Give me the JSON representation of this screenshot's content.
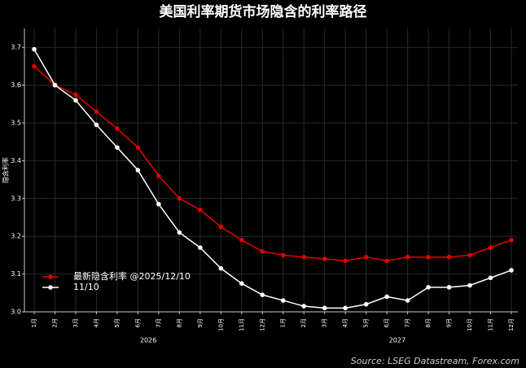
{
  "chart_data": {
    "type": "line",
    "title": "美国利率期货市场隐含的利率路径",
    "y_label": "隐含利率",
    "source": "Source: LSEG Datastream, Forex.com",
    "categories": [
      "1月",
      "2月",
      "3月",
      "4月",
      "5月",
      "6月",
      "7月",
      "8月",
      "9月",
      "10月",
      "11月",
      "12月",
      "1月",
      "2月",
      "3月",
      "4月",
      "5月",
      "6月",
      "7月",
      "8月",
      "9月",
      "10月",
      "11月",
      "12月"
    ],
    "x_groups": [
      "2026",
      "2027"
    ],
    "series": [
      {
        "name": "最新隐含利率 @2025/12/10",
        "color": "#e00000",
        "values": [
          3.65,
          3.6,
          3.575,
          3.53,
          3.485,
          3.435,
          3.36,
          3.3,
          3.27,
          3.225,
          3.19,
          3.16,
          3.15,
          3.145,
          3.14,
          3.135,
          3.145,
          3.135,
          3.145,
          3.145,
          3.145,
          3.15,
          3.17,
          3.19
        ]
      },
      {
        "name": "11/10",
        "color": "#ffffff",
        "values": [
          3.695,
          3.6,
          3.56,
          3.495,
          3.435,
          3.375,
          3.285,
          3.21,
          3.17,
          3.115,
          3.075,
          3.045,
          3.03,
          3.015,
          3.01,
          3.01,
          3.02,
          3.04,
          3.03,
          3.065,
          3.065,
          3.07,
          3.09,
          3.11
        ]
      }
    ],
    "ylim": [
      3.0,
      3.75
    ],
    "yticks": [
      {
        "value": 3,
        "label": "3.0"
      },
      3.1,
      3.2,
      3.3,
      3.4,
      3.5,
      3.6,
      3.7
    ],
    "grid": true,
    "legend": "lower left"
  }
}
